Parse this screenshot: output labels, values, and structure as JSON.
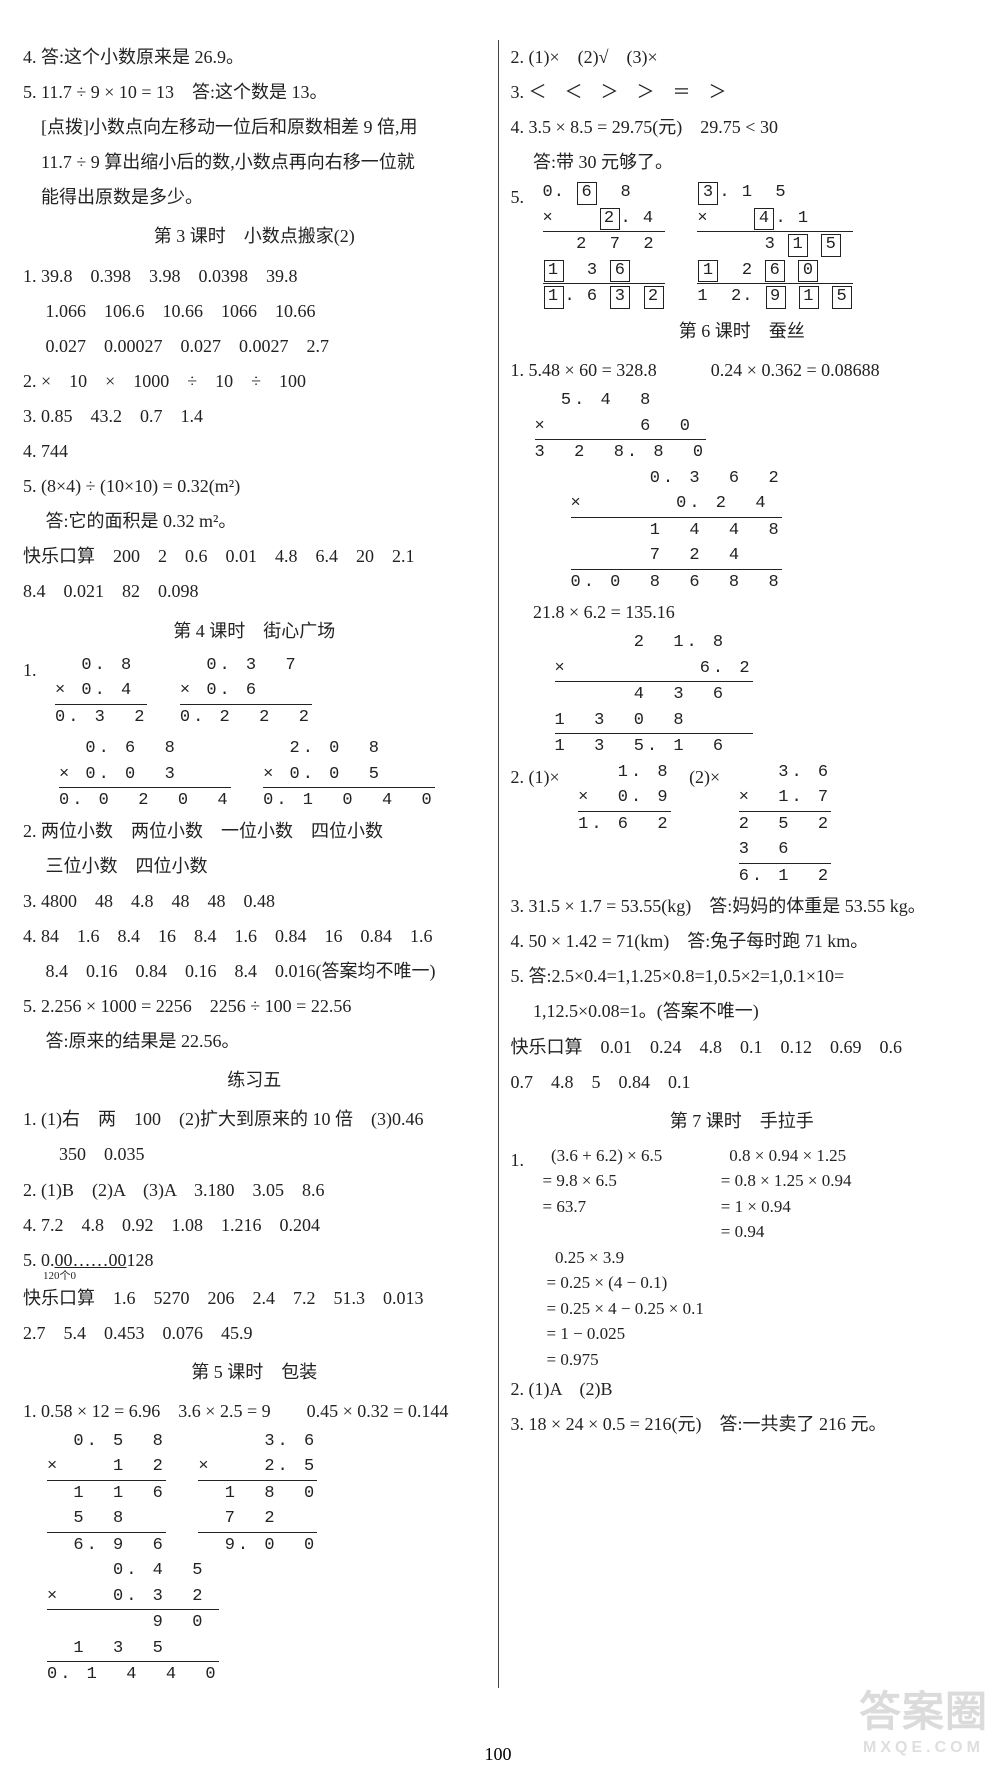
{
  "page_number": "100",
  "watermark_main": "答案圈",
  "watermark_sub": "MXQE.COM",
  "left": {
    "l1": "4. 答:这个小数原来是 26.9。",
    "l2": "5. 11.7 ÷ 9 × 10 = 13　答:这个数是 13。",
    "l3": "　[点拨]小数点向左移动一位后和原数相差 9 倍,用",
    "l4": "　11.7 ÷ 9 算出缩小后的数,小数点再向右移一位就",
    "l5": "　能得出原数是多少。",
    "s3_title": "第 3 课时　小数点搬家(2)",
    "s3_l1": "1. 39.8　0.398　3.98　0.0398　39.8",
    "s3_l2": "　 1.066　106.6　10.66　1066　10.66",
    "s3_l3": "　 0.027　0.00027　0.027　0.0027　2.7",
    "s3_l4": "2. ×　10　×　1000　÷　10　÷　100",
    "s3_l5": "3. 0.85　43.2　0.7　1.4",
    "s3_l6": "4. 744",
    "s3_l7": "5. (8×4) ÷ (10×10) = 0.32(m²)",
    "s3_l8": "　 答:它的面积是 0.32 m²。",
    "s3_l9": "快乐口算　200　2　0.6　0.01　4.8　6.4　20　2.1",
    "s3_l10": "8.4　0.021　82　0.098",
    "s4_title": "第 4 课时　街心广场",
    "s4_q1": "1.",
    "mult_a": {
      "r1": "  0. 8",
      "r2": "× 0. 4",
      "r3": "0. 3  2"
    },
    "mult_b": {
      "r1": "  0. 3  7",
      "r2": "× 0. 6   ",
      "r3": "0. 2  2  2"
    },
    "mult_c": {
      "r1": "  0. 6  8",
      "r2": "× 0. 0  3",
      "r3": "0. 0  2  0  4"
    },
    "mult_d": {
      "r1": "  2. 0  8",
      "r2": "× 0. 0  5",
      "r3": "0. 1  0  4  0"
    },
    "s4_l2": "2. 两位小数　两位小数　一位小数　四位小数",
    "s4_l2b": "　 三位小数　四位小数",
    "s4_l3": "3. 4800　48　4.8　48　48　0.48",
    "s4_l4": "4. 84　1.6　8.4　16　8.4　1.6　0.84　16　0.84　1.6",
    "s4_l4b": "　 8.4　0.16　0.84　0.16　8.4　0.016(答案均不唯一)",
    "s4_l5": "5. 2.256 × 1000 = 2256　2256 ÷ 100 = 22.56",
    "s4_l5b": "　 答:原来的结果是 22.56。",
    "ex5_title": "练习五",
    "ex5_l1": "1. (1)右　两　100　(2)扩大到原来的 10 倍　(3)0.46",
    "ex5_l1b": "　　350　0.035",
    "ex5_l2": "2. (1)B　(2)A　(3)A　3.180　3.05　8.6",
    "ex5_l4": "4. 7.2　4.8　0.92　1.08　1.216　0.204",
    "ex5_l5a": "5. 0.",
    "ex5_l5b": "00……00",
    "ex5_l5c": "128",
    "ex5_l5_under": "120个0",
    "ex5_kl": "快乐口算　1.6　5270　206　2.4　7.2　51.3　0.013",
    "ex5_klb": "2.7　5.4　0.453　0.076　45.9",
    "s5_title": "第 5 课时　包装",
    "s5_l1": "1. 0.58 × 12 = 6.96　3.6 × 2.5 = 9　　0.45 × 0.32 = 0.144",
    "mult_e": {
      "r1": "  0. 5  8",
      "r2": "×    1  2",
      "r3": "  1  1  6",
      "r4": "  5  8   ",
      "r5": "  6. 9  6"
    },
    "mult_f": {
      "r1": "     3. 6",
      "r2": "×    2. 5",
      "r3": "  1  8  0",
      "r4": "  7  2   ",
      "r5": "  9. 0  0"
    },
    "mult_g": {
      "r1": "     0. 4  5",
      "r2": "×    0. 3  2",
      "r3": "        9  0",
      "r4": "  1  3  5   ",
      "r5": "0. 1  4  4  0"
    }
  },
  "right": {
    "l1": "2. (1)×　(2)√　(3)×",
    "l2": "3. ＜　＜　＞　＞　＝　＞",
    "l3": "4. 3.5 × 8.5 = 29.75(元)　29.75 < 30",
    "l4": "　 答:带 30 元够了。",
    "l5_prefix": "5.",
    "box_a": {
      "top": "0. [6]  8",
      "mul": "×    [2]. 4",
      "p1": "   2  7  2",
      "p2": "[1]  3 [6]   ",
      "res": "[1]. 6 [3] [2]"
    },
    "box_b": {
      "top": "[3]. 1  5",
      "mul": "×    [4]. 1",
      "p1": "      3 [1] [5]",
      "p2": "[1]  2 [6] [0]   ",
      "res": "1  2. [9] [1] [5]"
    },
    "s6_title": "第 6 课时　蚕丝",
    "s6_l1": "1. 5.48 × 60 = 328.8　　　0.24 × 0.362 = 0.08688",
    "mult_h": {
      "r1": "  5. 4  8",
      "r2": "×       6  0",
      "r3": "3  2  8. 8  0"
    },
    "mult_i": {
      "r1": "      0. 3  6  2",
      "r2": "×       0. 2  4",
      "r3": "      1  4  4  8",
      "r4": "      7  2  4   ",
      "r5": "0. 0  8  6  8  8"
    },
    "s6_l2": "　 21.8 × 6.2 = 135.16",
    "mult_j": {
      "r1": "      2  1. 8",
      "r2": "×          6. 2",
      "r3": "      4  3  6",
      "r4": "1  3  0  8   ",
      "r5": "1  3  5. 1  6"
    },
    "s6_q2a": "2. (1)×",
    "s6_q2b": "(2)×",
    "mult_k": {
      "r1": "   1. 8",
      "r2": "×  0. 9",
      "r3": "1. 6  2"
    },
    "mult_l": {
      "r1": "   3. 6",
      "r2": "×  1. 7",
      "r3": "2  5  2",
      "r4": "3  6   ",
      "r5": "6. 1  2"
    },
    "s6_l3": "3. 31.5 × 1.7 = 53.55(kg)　答:妈妈的体重是 53.55 kg。",
    "s6_l4": "4. 50 × 1.42 = 71(km)　答:兔子每时跑 71 km。",
    "s6_l5": "5. 答:2.5×0.4=1,1.25×0.8=1,0.5×2=1,0.1×10=",
    "s6_l5b": "　 1,12.5×0.08=1。(答案不唯一)",
    "s6_kl": "快乐口算　0.01　0.24　4.8　0.1　0.12　0.69　0.6",
    "s6_klb": "0.7　4.8　5　0.84　0.1",
    "s7_title": "第 7 课时　手拉手",
    "s7_q1": "1.",
    "calc_a": {
      "l1": "  (3.6 + 6.2) × 6.5",
      "l2": "= 9.8 × 6.5",
      "l3": "= 63.7"
    },
    "calc_b": {
      "l1": "  0.8 × 0.94 × 1.25",
      "l2": "= 0.8 × 1.25 × 0.94",
      "l3": "= 1 × 0.94",
      "l4": "= 0.94"
    },
    "calc_c": {
      "l1": "  0.25 × 3.9",
      "l2": "= 0.25 × (4 − 0.1)",
      "l3": "= 0.25 × 4 − 0.25 × 0.1",
      "l4": "= 1 − 0.025",
      "l5": "= 0.975"
    },
    "s7_l2": "2. (1)A　(2)B",
    "s7_l3": "3. 18 × 24 × 0.5 = 216(元)　答:一共卖了 216 元。"
  }
}
